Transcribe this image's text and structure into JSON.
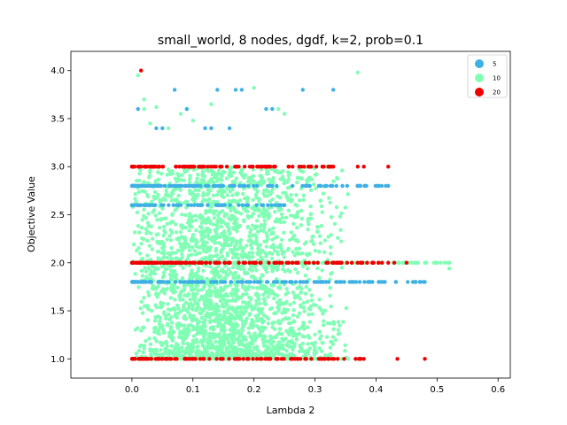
{
  "chart_data": {
    "type": "scatter",
    "title": "small_world, 8 nodes, dgdf, k=2, prob=0.1",
    "xlabel": "Lambda 2",
    "ylabel": "Objective Value",
    "xlim": [
      -0.1,
      0.62
    ],
    "ylim": [
      0.8,
      4.2
    ],
    "xticks": [
      "0.0",
      "0.1",
      "0.2",
      "0.3",
      "0.4",
      "0.5",
      "0.6"
    ],
    "yticks": [
      "1.0",
      "1.5",
      "2.0",
      "2.5",
      "3.0",
      "3.5",
      "4.0"
    ],
    "grid": false,
    "legend_position": "top-right",
    "series": [
      {
        "name": "10",
        "color": "#80ffb4",
        "levels": [
          {
            "y": 1.0,
            "x_range": [
              0.0,
              0.37
            ]
          },
          {
            "y": 2.0,
            "x_range": [
              0.0,
              0.52
            ]
          },
          {
            "y": 1.0,
            "x_range": [
              0.0,
              0.36
            ],
            "y_range": [
              1.0,
              3.0
            ],
            "note": "dense cloud"
          }
        ],
        "points": [
          {
            "x": 0.01,
            "y": 3.95
          },
          {
            "x": 0.02,
            "y": 3.6
          },
          {
            "x": 0.02,
            "y": 3.7
          },
          {
            "x": 0.03,
            "y": 3.45
          },
          {
            "x": 0.04,
            "y": 3.62
          },
          {
            "x": 0.06,
            "y": 3.4
          },
          {
            "x": 0.07,
            "y": 3.8
          },
          {
            "x": 0.08,
            "y": 3.55
          },
          {
            "x": 0.09,
            "y": 3.6
          },
          {
            "x": 0.1,
            "y": 3.48
          },
          {
            "x": 0.13,
            "y": 3.65
          },
          {
            "x": 0.2,
            "y": 3.82
          },
          {
            "x": 0.24,
            "y": 3.6
          },
          {
            "x": 0.25,
            "y": 3.55
          },
          {
            "x": 0.37,
            "y": 3.98
          },
          {
            "x": 0.52,
            "y": 1.94
          }
        ]
      },
      {
        "name": "5",
        "color": "#3fb0e4",
        "levels": [
          {
            "y": 1.8,
            "x_range": [
              0.0,
              0.48
            ]
          },
          {
            "y": 2.6,
            "x_range": [
              0.0,
              0.25
            ]
          },
          {
            "y": 2.8,
            "x_range": [
              0.0,
              0.42
            ]
          }
        ],
        "points": [
          {
            "x": 0.01,
            "y": 3.6
          },
          {
            "x": 0.04,
            "y": 3.4
          },
          {
            "x": 0.05,
            "y": 3.4
          },
          {
            "x": 0.07,
            "y": 3.8
          },
          {
            "x": 0.09,
            "y": 3.6
          },
          {
            "x": 0.12,
            "y": 3.4
          },
          {
            "x": 0.13,
            "y": 3.4
          },
          {
            "x": 0.14,
            "y": 3.8
          },
          {
            "x": 0.16,
            "y": 3.4
          },
          {
            "x": 0.17,
            "y": 3.8
          },
          {
            "x": 0.18,
            "y": 3.8
          },
          {
            "x": 0.22,
            "y": 3.6
          },
          {
            "x": 0.23,
            "y": 3.6
          },
          {
            "x": 0.28,
            "y": 3.8
          },
          {
            "x": 0.33,
            "y": 3.8
          }
        ]
      },
      {
        "name": "20",
        "color": "#ee0000",
        "levels": [
          {
            "y": 1.0,
            "x_range": [
              0.0,
              0.38
            ]
          },
          {
            "y": 2.0,
            "x_range": [
              0.0,
              0.41
            ]
          },
          {
            "y": 3.0,
            "x_range": [
              0.0,
              0.33
            ]
          }
        ],
        "points": [
          {
            "x": 0.015,
            "y": 4.0
          },
          {
            "x": 0.37,
            "y": 3.0
          },
          {
            "x": 0.38,
            "y": 3.0
          },
          {
            "x": 0.42,
            "y": 3.0
          },
          {
            "x": 0.42,
            "y": 2.0
          },
          {
            "x": 0.43,
            "y": 2.0
          },
          {
            "x": 0.45,
            "y": 2.0
          },
          {
            "x": 0.435,
            "y": 1.0
          },
          {
            "x": 0.48,
            "y": 1.0
          }
        ]
      }
    ]
  }
}
